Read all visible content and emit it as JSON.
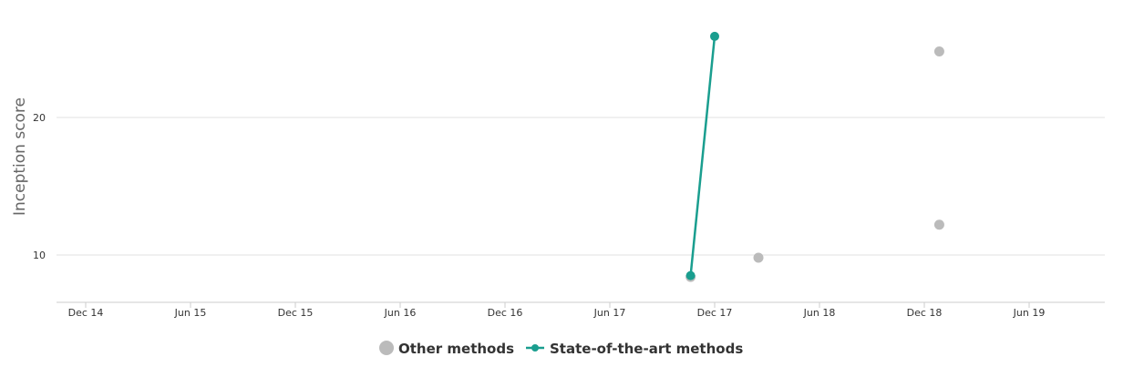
{
  "chart_data": {
    "type": "scatter",
    "ylabel": "Inception score",
    "xlabel": "",
    "x_ticks": [
      "Dec 14",
      "Jun 15",
      "Dec 15",
      "Jun 16",
      "Dec 16",
      "Jun 17",
      "Dec 17",
      "Jun 18",
      "Dec 18",
      "Jun 19"
    ],
    "x_tick_dates": [
      "2014-12-01",
      "2015-06-01",
      "2015-12-01",
      "2016-06-01",
      "2016-12-01",
      "2017-06-01",
      "2017-12-01",
      "2018-06-01",
      "2018-12-01",
      "2019-06-01"
    ],
    "y_ticks": [
      10,
      20
    ],
    "xlim": [
      "2014-10-15",
      "2019-10-20"
    ],
    "ylim": [
      6.6,
      26.9
    ],
    "grid": "horizontal",
    "legend_position": "bottom-center",
    "series": [
      {
        "name": "Other methods",
        "kind": "scatter",
        "color": "#bbbbbb",
        "points": [
          {
            "x": "2017-10-20",
            "y": 8.4
          },
          {
            "x": "2018-02-15",
            "y": 9.8
          },
          {
            "x": "2018-12-27",
            "y": 12.2
          },
          {
            "x": "2018-12-27",
            "y": 24.8
          }
        ]
      },
      {
        "name": "State-of-the-art methods",
        "kind": "line",
        "color": "#1a9e8f",
        "points": [
          {
            "x": "2017-10-20",
            "y": 8.5
          },
          {
            "x": "2017-12-01",
            "y": 25.9
          }
        ]
      }
    ]
  }
}
